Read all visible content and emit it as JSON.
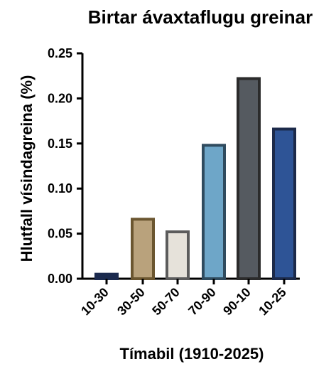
{
  "chart_data": {
    "type": "bar",
    "title": "Birtar ávaxtaflugu greinar",
    "xlabel": "Tímabil (1910-2025)",
    "ylabel": "Hlutfall vísindagreina (%)",
    "ylim": [
      0,
      0.25
    ],
    "yticks": [
      "0.00",
      "0.05",
      "0.10",
      "0.15",
      "0.20",
      "0.25"
    ],
    "categories": [
      "10-30",
      "30-50",
      "50-70",
      "70-90",
      "90-10",
      "10-25"
    ],
    "values": [
      0.005,
      0.066,
      0.052,
      0.148,
      0.222,
      0.166
    ],
    "bar_colors": [
      "#1b2a4e",
      "#b9a27c",
      "#e6e2da",
      "#6ea6c8",
      "#555a60",
      "#2e5496"
    ],
    "bar_edge_colors": [
      "#1b2a4e",
      "#6b5630",
      "#5c5c5c",
      "#2f4b5e",
      "#2b2b2b",
      "#1c2a4a"
    ],
    "grid": false,
    "legend": "none"
  }
}
